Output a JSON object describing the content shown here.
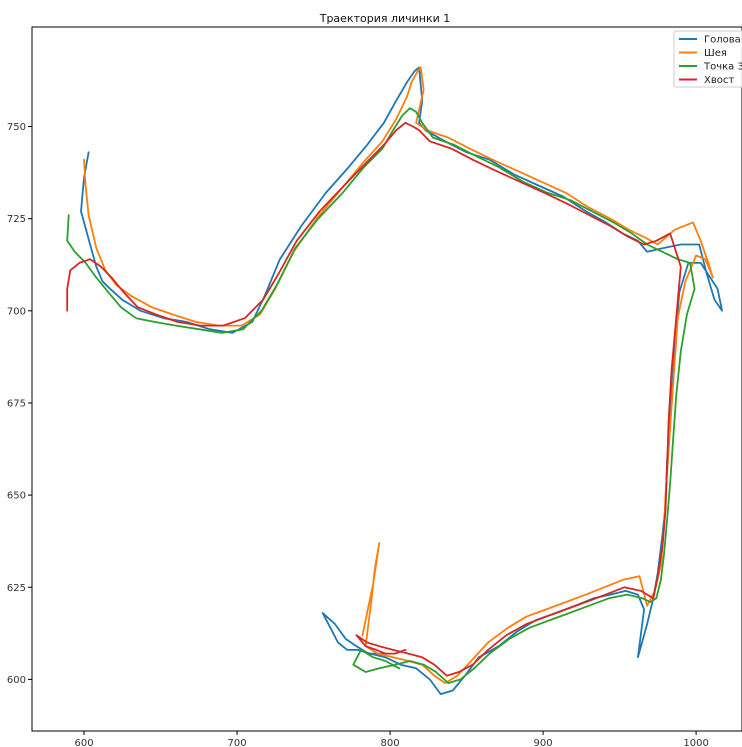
{
  "chart_data": {
    "type": "line",
    "title": "Траектория личинки 1",
    "xlabel": "",
    "ylabel": "",
    "xlim": [
      566,
      1030
    ],
    "ylim": [
      586,
      777
    ],
    "x_ticks": [
      600,
      700,
      800,
      900,
      1000
    ],
    "y_ticks": [
      600,
      625,
      650,
      675,
      700,
      725,
      750
    ],
    "grid": false,
    "legend_position": "top-right",
    "series": [
      {
        "name": "Голова",
        "color": "#1f77b4",
        "x": [
          603,
          600,
          598,
          604,
          608,
          612,
          617,
          625,
          637,
          652,
          667,
          682,
          697,
          710,
          718,
          728,
          742,
          758,
          773,
          785,
          796,
          804,
          811,
          816,
          819,
          821,
          819,
          823,
          836,
          850,
          865,
          881,
          897,
          913,
          928,
          941,
          952,
          962,
          968,
          978,
          990,
          1002,
          1007,
          1012,
          1017,
          1014,
          1003,
          995,
          989,
          987,
          985,
          983,
          981,
          980,
          978,
          975,
          972,
          968,
          964,
          962,
          966,
          962,
          954,
          944,
          933,
          921,
          908,
          895,
          883,
          871,
          858,
          849,
          841,
          833,
          826,
          817,
          807,
          797,
          787,
          779,
          772,
          766,
          761,
          756,
          764,
          771,
          778,
          786,
          796
        ],
        "y": [
          743,
          736,
          727,
          718,
          712,
          708,
          706,
          703,
          700,
          698,
          697,
          695,
          694,
          697,
          704,
          714,
          723,
          732,
          739,
          745,
          751,
          757,
          762,
          765,
          766,
          757,
          751,
          749,
          746,
          743,
          741,
          737,
          734,
          731,
          727,
          724,
          721,
          719,
          716,
          717,
          718,
          718,
          710,
          703,
          700,
          706,
          713,
          713,
          705,
          695,
          683,
          671,
          659,
          647,
          639,
          629,
          622,
          615,
          609,
          606,
          619,
          623,
          624,
          623,
          622,
          620,
          618,
          616,
          613,
          609,
          606,
          601,
          597,
          596,
          600,
          603,
          604,
          606,
          607,
          608,
          608,
          610,
          614,
          618,
          615,
          611,
          609,
          607,
          607
        ]
      },
      {
        "name": "Шея",
        "color": "#ff7f0e",
        "x": [
          600,
          601,
          603,
          608,
          614,
          621,
          631,
          644,
          658,
          673,
          688,
          703,
          715,
          725,
          737,
          752,
          768,
          782,
          795,
          804,
          811,
          814,
          818,
          820,
          822,
          817,
          824,
          838,
          852,
          867,
          883,
          899,
          915,
          930,
          944,
          956,
          966,
          975,
          986,
          998,
          1003,
          1008,
          1011,
          1006,
          1000,
          993,
          988,
          986,
          984,
          982,
          980,
          979,
          977,
          973,
          968,
          963,
          952,
          940,
          928,
          915,
          902,
          889,
          877,
          864,
          853,
          844,
          836,
          829,
          821,
          812,
          802,
          792,
          784,
          788,
          790,
          793,
          789,
          782
        ],
        "y": [
          741,
          734,
          726,
          717,
          711,
          707,
          704,
          701,
          699,
          697,
          696,
          696,
          699,
          706,
          716,
          725,
          733,
          740,
          746,
          752,
          758,
          762,
          765,
          766,
          760,
          751,
          749,
          747,
          744,
          741,
          738,
          735,
          732,
          728,
          725,
          722,
          720,
          718,
          722,
          724,
          719,
          713,
          709,
          714,
          715,
          708,
          698,
          686,
          674,
          662,
          650,
          641,
          631,
          624,
          620,
          628,
          627,
          625,
          623,
          621,
          619,
          617,
          614,
          610,
          605,
          601,
          599,
          601,
          604,
          605,
          606,
          607,
          609,
          622,
          630,
          637,
          626,
          612
        ]
      },
      {
        "name": "Точка 3/4",
        "color": "#2ca02c",
        "x": [
          590,
          589,
          594,
          601,
          608,
          616,
          624,
          634,
          646,
          660,
          675,
          690,
          704,
          716,
          726,
          738,
          753,
          769,
          783,
          795,
          802,
          808,
          813,
          817,
          821,
          828,
          842,
          856,
          871,
          887,
          903,
          918,
          932,
          946,
          958,
          968,
          978,
          988,
          996,
          999,
          994,
          990,
          987,
          985,
          983,
          981,
          979,
          977,
          974,
          970,
          965,
          955,
          943,
          930,
          917,
          904,
          891,
          878,
          865,
          855,
          846,
          838,
          830,
          822,
          813,
          803,
          793,
          784,
          776,
          781,
          789,
          797,
          806
        ],
        "y": [
          726,
          719,
          716,
          713,
          709,
          705,
          701,
          698,
          697,
          696,
          695,
          694,
          695,
          700,
          707,
          717,
          725,
          732,
          739,
          744,
          749,
          753,
          755,
          754,
          751,
          747,
          745,
          742,
          739,
          735,
          732,
          730,
          727,
          724,
          721,
          718,
          716,
          714,
          713,
          706,
          699,
          689,
          677,
          665,
          653,
          643,
          634,
          627,
          622,
          621,
          622,
          623,
          622,
          620,
          618,
          616,
          614,
          611,
          607,
          603,
          600,
          599,
          602,
          604,
          605,
          604,
          603,
          602,
          604,
          608,
          606,
          605,
          603
        ]
      },
      {
        "name": "Хвост",
        "color": "#d62728",
        "x": [
          589,
          589,
          591,
          597,
          604,
          611,
          618,
          626,
          635,
          647,
          661,
          676,
          691,
          705,
          717,
          727,
          739,
          754,
          770,
          784,
          796,
          804,
          810,
          815,
          819,
          826,
          840,
          854,
          869,
          885,
          901,
          916,
          930,
          944,
          956,
          966,
          974,
          983,
          990,
          987,
          984,
          982,
          981,
          980,
          978,
          975,
          972,
          964,
          953,
          941,
          928,
          915,
          902,
          889,
          876,
          864,
          854,
          845,
          837,
          829,
          821,
          812,
          802,
          793,
          785,
          778,
          784,
          791,
          797,
          803,
          810
        ],
        "y": [
          700,
          706,
          711,
          713,
          714,
          712,
          709,
          705,
          701,
          699,
          697,
          696,
          696,
          698,
          703,
          710,
          719,
          727,
          734,
          740,
          745,
          749,
          751,
          750,
          749,
          746,
          744,
          741,
          738,
          735,
          732,
          729,
          726,
          723,
          720,
          718,
          719,
          721,
          712,
          698,
          684,
          670,
          657,
          646,
          636,
          628,
          622,
          624,
          625,
          623,
          621,
          619,
          617,
          615,
          612,
          608,
          604,
          602,
          601,
          604,
          606,
          607,
          608,
          609,
          610,
          612,
          609,
          608,
          607,
          607,
          608
        ]
      }
    ]
  }
}
